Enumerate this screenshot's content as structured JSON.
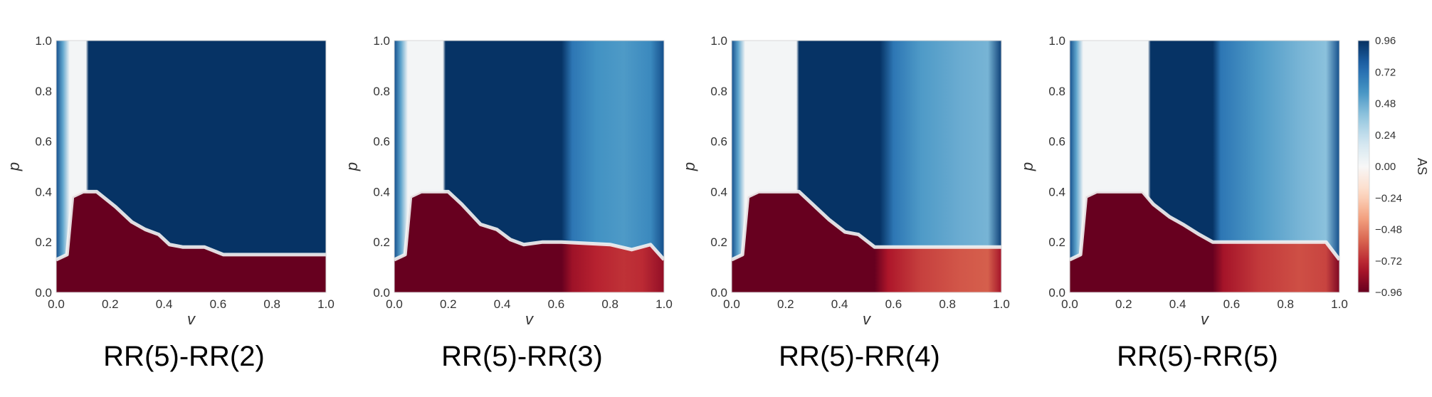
{
  "chart_data": {
    "type": "heatmap",
    "colorbar": {
      "label": "AS",
      "ticks": [
        "0.96",
        "0.72",
        "0.48",
        "0.24",
        "0.00",
        "−0.24",
        "−0.48",
        "−0.72",
        "−0.96"
      ],
      "range": [
        -0.96,
        0.96
      ],
      "colormap": [
        "#67001f",
        "#b2182b",
        "#d6604d",
        "#f4a582",
        "#fddbc7",
        "#f7f7f7",
        "#d1e5f0",
        "#92c5de",
        "#4393c3",
        "#2166ac",
        "#053061"
      ]
    },
    "x_ticks": [
      "0.0",
      "0.2",
      "0.4",
      "0.6",
      "0.8",
      "1.0"
    ],
    "y_ticks": [
      "0.0",
      "0.2",
      "0.4",
      "0.6",
      "0.8",
      "1.0"
    ],
    "panels": [
      {
        "caption": "RR(5)-RR(2)",
        "xlabel": "v",
        "ylabel": "p",
        "xlim": [
          0,
          1
        ],
        "ylim": [
          0,
          1
        ],
        "white_band": [
          0.04,
          0.12
        ],
        "boundary": [
          [
            0.0,
            0.13
          ],
          [
            0.04,
            0.15
          ],
          [
            0.06,
            0.38
          ],
          [
            0.1,
            0.4
          ],
          [
            0.15,
            0.4
          ],
          [
            0.22,
            0.34
          ],
          [
            0.28,
            0.28
          ],
          [
            0.33,
            0.25
          ],
          [
            0.38,
            0.23
          ],
          [
            0.42,
            0.19
          ],
          [
            0.47,
            0.18
          ],
          [
            0.55,
            0.18
          ],
          [
            0.62,
            0.15
          ],
          [
            1.0,
            0.15
          ]
        ],
        "region_values": {
          "left_strip": 0.85,
          "white_band": 0.02,
          "upper_right": 0.95,
          "lower": -0.96
        },
        "bottom_right": [
          [
            0.0,
            -0.96
          ],
          [
            1.0,
            -0.96
          ]
        ],
        "upper_right": [
          [
            0.12,
            0.95
          ],
          [
            1.0,
            0.95
          ]
        ]
      },
      {
        "caption": "RR(5)-RR(3)",
        "xlabel": "v",
        "ylabel": "p",
        "xlim": [
          0,
          1
        ],
        "ylim": [
          0,
          1
        ],
        "white_band": [
          0.04,
          0.19
        ],
        "boundary": [
          [
            0.0,
            0.13
          ],
          [
            0.04,
            0.15
          ],
          [
            0.06,
            0.38
          ],
          [
            0.1,
            0.4
          ],
          [
            0.2,
            0.4
          ],
          [
            0.25,
            0.35
          ],
          [
            0.32,
            0.27
          ],
          [
            0.38,
            0.25
          ],
          [
            0.43,
            0.21
          ],
          [
            0.48,
            0.19
          ],
          [
            0.55,
            0.2
          ],
          [
            0.62,
            0.2
          ],
          [
            0.8,
            0.19
          ],
          [
            0.88,
            0.17
          ],
          [
            0.95,
            0.19
          ],
          [
            1.0,
            0.13
          ]
        ],
        "region_values": {
          "left_strip": 0.85,
          "white_band": 0.02,
          "upper_right": 0.95,
          "lower": -0.96
        },
        "bottom_right": [
          [
            0.0,
            -0.96
          ],
          [
            0.62,
            -0.96
          ],
          [
            0.66,
            -0.82
          ],
          [
            0.75,
            -0.74
          ],
          [
            0.85,
            -0.7
          ],
          [
            0.92,
            -0.72
          ],
          [
            1.0,
            -0.85
          ]
        ],
        "upper_right": [
          [
            0.19,
            0.95
          ],
          [
            0.62,
            0.95
          ],
          [
            0.66,
            0.7
          ],
          [
            0.75,
            0.58
          ],
          [
            0.85,
            0.55
          ],
          [
            0.95,
            0.62
          ],
          [
            1.0,
            0.85
          ]
        ]
      },
      {
        "caption": "RR(5)-RR(4)",
        "xlabel": "v",
        "ylabel": "p",
        "xlim": [
          0,
          1
        ],
        "ylim": [
          0,
          1
        ],
        "white_band": [
          0.04,
          0.25
        ],
        "boundary": [
          [
            0.0,
            0.13
          ],
          [
            0.04,
            0.15
          ],
          [
            0.06,
            0.38
          ],
          [
            0.1,
            0.4
          ],
          [
            0.25,
            0.4
          ],
          [
            0.3,
            0.35
          ],
          [
            0.36,
            0.29
          ],
          [
            0.42,
            0.24
          ],
          [
            0.47,
            0.23
          ],
          [
            0.53,
            0.18
          ],
          [
            0.6,
            0.18
          ],
          [
            1.0,
            0.18
          ]
        ],
        "region_values": {
          "left_strip": 0.85,
          "white_band": 0.02,
          "upper_right": 0.95,
          "lower": -0.96
        },
        "bottom_right": [
          [
            0.0,
            -0.96
          ],
          [
            0.53,
            -0.96
          ],
          [
            0.58,
            -0.78
          ],
          [
            0.7,
            -0.66
          ],
          [
            0.85,
            -0.6
          ],
          [
            0.95,
            -0.58
          ],
          [
            1.0,
            -0.8
          ]
        ],
        "upper_right": [
          [
            0.25,
            0.95
          ],
          [
            0.55,
            0.95
          ],
          [
            0.6,
            0.7
          ],
          [
            0.7,
            0.55
          ],
          [
            0.85,
            0.48
          ],
          [
            0.95,
            0.45
          ],
          [
            1.0,
            0.9
          ]
        ]
      },
      {
        "caption": "RR(5)-RR(5)",
        "xlabel": "v",
        "ylabel": "p",
        "xlim": [
          0,
          1
        ],
        "ylim": [
          0,
          1
        ],
        "white_band": [
          0.04,
          0.3
        ],
        "boundary": [
          [
            0.0,
            0.13
          ],
          [
            0.04,
            0.15
          ],
          [
            0.06,
            0.38
          ],
          [
            0.1,
            0.4
          ],
          [
            0.27,
            0.4
          ],
          [
            0.31,
            0.35
          ],
          [
            0.37,
            0.3
          ],
          [
            0.42,
            0.27
          ],
          [
            0.48,
            0.23
          ],
          [
            0.53,
            0.2
          ],
          [
            0.6,
            0.2
          ],
          [
            0.95,
            0.2
          ],
          [
            1.0,
            0.13
          ]
        ],
        "region_values": {
          "left_strip": 0.85,
          "white_band": 0.02,
          "upper_right": 0.95,
          "lower": -0.96
        },
        "bottom_right": [
          [
            0.0,
            -0.96
          ],
          [
            0.53,
            -0.96
          ],
          [
            0.57,
            -0.8
          ],
          [
            0.7,
            -0.68
          ],
          [
            0.85,
            -0.62
          ],
          [
            0.95,
            -0.65
          ],
          [
            1.0,
            -0.9
          ]
        ],
        "upper_right": [
          [
            0.3,
            0.95
          ],
          [
            0.53,
            0.95
          ],
          [
            0.56,
            0.7
          ],
          [
            0.7,
            0.55
          ],
          [
            0.85,
            0.45
          ],
          [
            0.95,
            0.4
          ],
          [
            1.0,
            0.85
          ]
        ]
      }
    ]
  }
}
